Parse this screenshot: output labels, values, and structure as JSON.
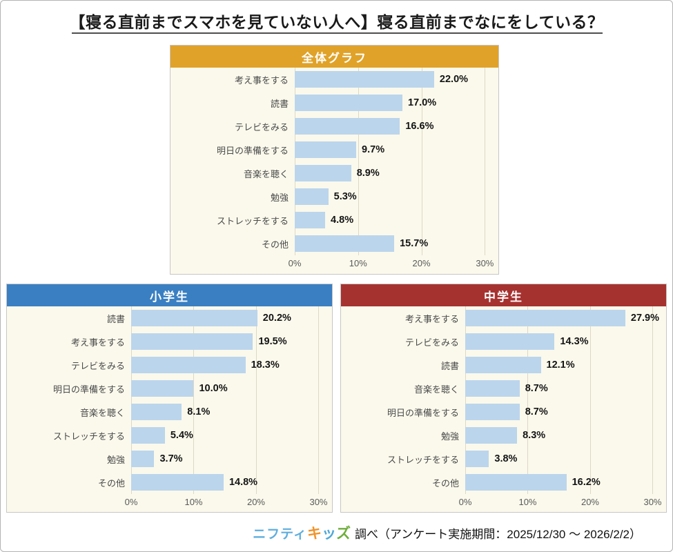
{
  "title": "【寝る直前までスマホを見ていない人へ】寝る直前までなにをしている？",
  "colors": {
    "bar_fill": "#BBD5EC",
    "plot_background": "#FBF9EC",
    "overall_header": "#E0A228",
    "elementary_header": "#3A7FC2",
    "junior_header": "#A63230",
    "gridline": "#DDD8C5"
  },
  "chart_data": [
    {
      "type": "bar",
      "orientation": "horizontal",
      "title": "全体グラフ",
      "header_bg": "#E0A228",
      "categories": [
        "考え事をする",
        "読書",
        "テレビをみる",
        "明日の準備をする",
        "音楽を聴く",
        "勉強",
        "ストレッチをする",
        "その他"
      ],
      "values": [
        22.0,
        17.0,
        16.6,
        9.7,
        8.9,
        5.3,
        4.8,
        15.7
      ],
      "value_labels": [
        "22.0%",
        "17.0%",
        "16.6%",
        "9.7%",
        "8.9%",
        "5.3%",
        "4.8%",
        "15.7%"
      ],
      "xlim": [
        0,
        30
      ],
      "xticks": [
        0,
        10,
        20,
        30
      ],
      "xtick_labels": [
        "0%",
        "10%",
        "20%",
        "30%"
      ],
      "grid": true,
      "legend": false
    },
    {
      "type": "bar",
      "orientation": "horizontal",
      "title": "小学生",
      "header_bg": "#3A7FC2",
      "categories": [
        "読書",
        "考え事をする",
        "テレビをみる",
        "明日の準備をする",
        "音楽を聴く",
        "ストレッチをする",
        "勉強",
        "その他"
      ],
      "values": [
        20.2,
        19.5,
        18.3,
        10.0,
        8.1,
        5.4,
        3.7,
        14.8
      ],
      "value_labels": [
        "20.2%",
        "19.5%",
        "18.3%",
        "10.0%",
        "8.1%",
        "5.4%",
        "3.7%",
        "14.8%"
      ],
      "xlim": [
        0,
        30
      ],
      "xticks": [
        0,
        10,
        20,
        30
      ],
      "xtick_labels": [
        "0%",
        "10%",
        "20%",
        "30%"
      ],
      "grid": true,
      "legend": false
    },
    {
      "type": "bar",
      "orientation": "horizontal",
      "title": "中学生",
      "header_bg": "#A63230",
      "categories": [
        "考え事をする",
        "テレビをみる",
        "読書",
        "音楽を聴く",
        "明日の準備をする",
        "勉強",
        "ストレッチをする",
        "その他"
      ],
      "values": [
        27.9,
        14.3,
        12.1,
        8.7,
        8.7,
        8.3,
        3.8,
        16.2
      ],
      "value_labels": [
        "27.9%",
        "14.3%",
        "12.1%",
        "8.7%",
        "8.7%",
        "8.3%",
        "3.8%",
        "16.2%"
      ],
      "xlim": [
        0,
        30
      ],
      "xticks": [
        0,
        10,
        20,
        30
      ],
      "xtick_labels": [
        "0%",
        "10%",
        "20%",
        "30%"
      ],
      "grid": true,
      "legend": false
    }
  ],
  "footer": {
    "logo_parts": [
      {
        "text": "ニフティ",
        "color": "#5FAEDE",
        "style": "nifty"
      },
      {
        "text": "キ",
        "color": "#F0932B",
        "style": "kids"
      },
      {
        "text": "ッ",
        "color": "#4FA8D8",
        "style": "kids"
      },
      {
        "text": "ズ",
        "color": "#6FAE3B",
        "style": "kids"
      }
    ],
    "survey_note": "調べ（アンケート実施期間：2025/12/30 ～ 2026/2/2）"
  }
}
